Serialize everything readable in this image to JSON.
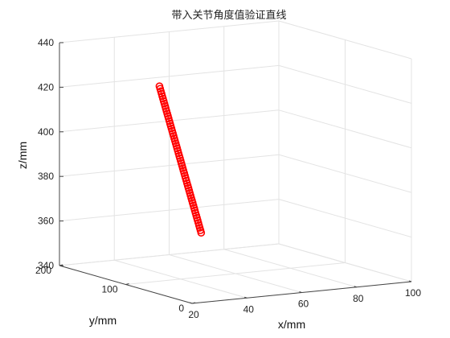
{
  "chart_data": {
    "type": "scatter",
    "projection": "3d",
    "title": "带入关节角度值验证直线",
    "xlabel": "x/mm",
    "ylabel": "y/mm",
    "zlabel": "z/mm",
    "xlim": [
      20,
      100
    ],
    "ylim": [
      0,
      200
    ],
    "zlim": [
      340,
      440
    ],
    "xticks": [
      "20",
      "40",
      "60",
      "80",
      "100"
    ],
    "yticks": [
      "0",
      "100",
      "200"
    ],
    "zticks": [
      "340",
      "360",
      "380",
      "400",
      "420",
      "440"
    ],
    "grid": true,
    "marker": "circle",
    "series": [
      {
        "color": "#ff0000",
        "start": {
          "x": 48,
          "y": 165,
          "z": 420
        },
        "end": {
          "x": 62,
          "y": 160,
          "z": 353
        },
        "num_points": 60
      }
    ]
  }
}
